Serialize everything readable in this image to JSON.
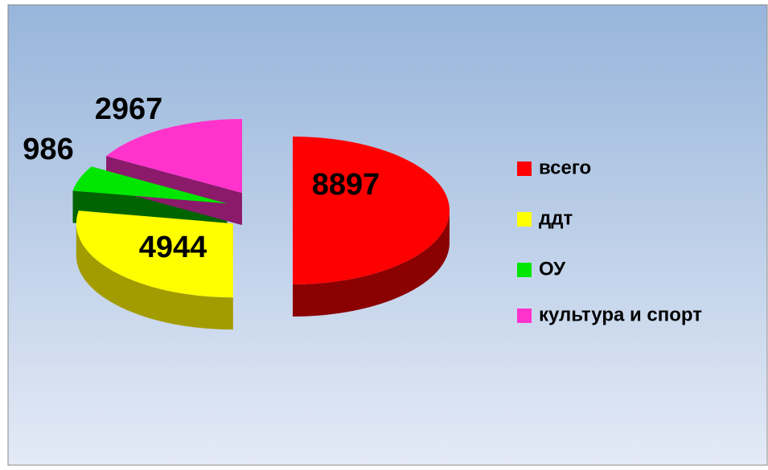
{
  "chart_data": {
    "type": "pie",
    "categories": [
      "всего",
      "ддт",
      "ОУ",
      "культура и спорт"
    ],
    "values": [
      8897,
      4944,
      986,
      2967
    ],
    "colors": [
      "#ff0000",
      "#ffff00",
      "#00e600",
      "#ff33cc"
    ],
    "side_colors": [
      "#8b0000",
      "#a39c00",
      "#006400",
      "#8b1a6b"
    ],
    "legend": "right"
  }
}
